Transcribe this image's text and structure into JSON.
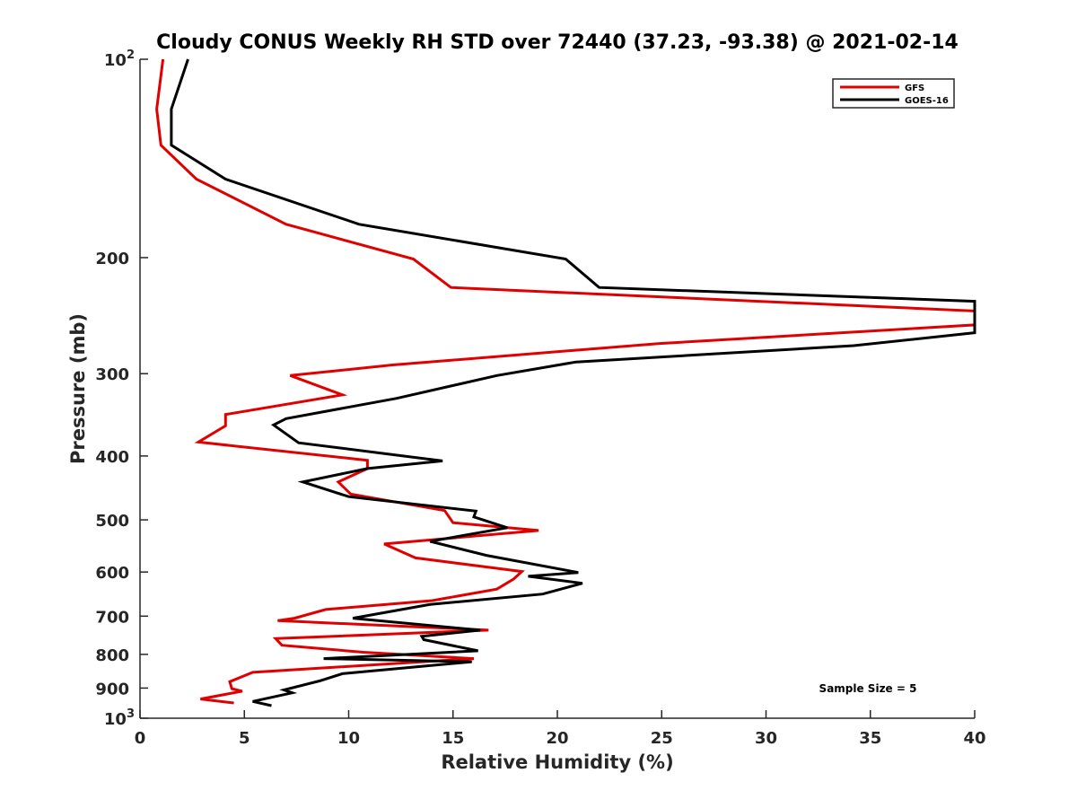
{
  "chart_data": {
    "type": "line",
    "title": "Cloudy CONUS Weekly RH STD over 72440 (37.23, -93.38) @ 2021-02-14",
    "xlabel": "Relative Humidity (%)",
    "ylabel": "Pressure (mb)",
    "xlim": [
      0,
      40
    ],
    "ylim": [
      100,
      1000
    ],
    "y_scale": "log",
    "y_reversed": true,
    "x_ticks": [
      "0",
      "5",
      "10",
      "15",
      "20",
      "25",
      "30",
      "35",
      "40"
    ],
    "y_ticks": [
      {
        "value": 100,
        "label": "10",
        "sup": "2"
      },
      {
        "value": 200,
        "label": "200"
      },
      {
        "value": 300,
        "label": "300"
      },
      {
        "value": 400,
        "label": "400"
      },
      {
        "value": 500,
        "label": "500"
      },
      {
        "value": 600,
        "label": "600"
      },
      {
        "value": 700,
        "label": "700"
      },
      {
        "value": 800,
        "label": "800"
      },
      {
        "value": 900,
        "label": "900"
      },
      {
        "value": 1000,
        "label": "10",
        "sup": "3"
      }
    ],
    "grid": false,
    "legend_position": "top-right",
    "annotation": "Sample Size = 5",
    "series": [
      {
        "name": "GFS",
        "color": "#e00000",
        "points": [
          [
            1.1,
            100
          ],
          [
            0.8,
            119
          ],
          [
            1.0,
            135
          ],
          [
            2.7,
            152
          ],
          [
            7.0,
            178
          ],
          [
            13.1,
            201
          ],
          [
            14.9,
            222
          ],
          [
            40,
            241
          ],
          [
            40,
            253
          ],
          [
            24.9,
            270
          ],
          [
            12.1,
            291
          ],
          [
            7.2,
            302
          ],
          [
            9.7,
            323
          ],
          [
            4.1,
            346
          ],
          [
            4.1,
            360
          ],
          [
            2.8,
            381
          ],
          [
            10.9,
            406
          ],
          [
            10.9,
            418
          ],
          [
            9.5,
            438
          ],
          [
            10.1,
            457
          ],
          [
            14.6,
            484
          ],
          [
            15.0,
            505
          ],
          [
            19.1,
            519
          ],
          [
            11.7,
            544
          ],
          [
            13.2,
            571
          ],
          [
            18.3,
            599
          ],
          [
            17.9,
            615
          ],
          [
            17.1,
            637
          ],
          [
            14.0,
            663
          ],
          [
            8.9,
            684
          ],
          [
            7.4,
            705
          ],
          [
            6.6,
            711
          ],
          [
            16.7,
            735
          ],
          [
            6.5,
            757
          ],
          [
            6.8,
            775
          ],
          [
            10.7,
            794
          ],
          [
            16.0,
            812
          ],
          [
            5.4,
            852
          ],
          [
            4.3,
            880
          ],
          [
            4.4,
            902
          ],
          [
            4.9,
            910
          ],
          [
            2.9,
            935
          ],
          [
            4.5,
            948
          ]
        ]
      },
      {
        "name": "GOES-16",
        "color": "#000000",
        "points": [
          [
            2.3,
            100
          ],
          [
            1.5,
            119
          ],
          [
            1.5,
            135
          ],
          [
            4.1,
            152
          ],
          [
            10.5,
            178
          ],
          [
            20.4,
            201
          ],
          [
            22.0,
            222
          ],
          [
            40,
            233
          ],
          [
            40,
            260
          ],
          [
            34.2,
            272
          ],
          [
            20.9,
            288
          ],
          [
            17.1,
            302
          ],
          [
            12.3,
            327
          ],
          [
            7.0,
            351
          ],
          [
            6.4,
            359
          ],
          [
            7.6,
            382
          ],
          [
            14.5,
            407
          ],
          [
            10.9,
            418
          ],
          [
            7.8,
            438
          ],
          [
            10.0,
            461
          ],
          [
            16.1,
            485
          ],
          [
            16.0,
            495
          ],
          [
            17.6,
            514
          ],
          [
            13.9,
            539
          ],
          [
            16.6,
            566
          ],
          [
            21.0,
            601
          ],
          [
            18.6,
            609
          ],
          [
            21.2,
            624
          ],
          [
            19.3,
            648
          ],
          [
            13.9,
            672
          ],
          [
            10.2,
            705
          ],
          [
            16.3,
            735
          ],
          [
            13.5,
            751
          ],
          [
            13.6,
            760
          ],
          [
            16.2,
            790
          ],
          [
            8.8,
            812
          ],
          [
            15.9,
            821
          ],
          [
            9.7,
            856
          ],
          [
            8.6,
            878
          ],
          [
            6.9,
            906
          ],
          [
            7.3,
            915
          ],
          [
            5.4,
            943
          ],
          [
            6.3,
            957
          ]
        ]
      }
    ]
  }
}
